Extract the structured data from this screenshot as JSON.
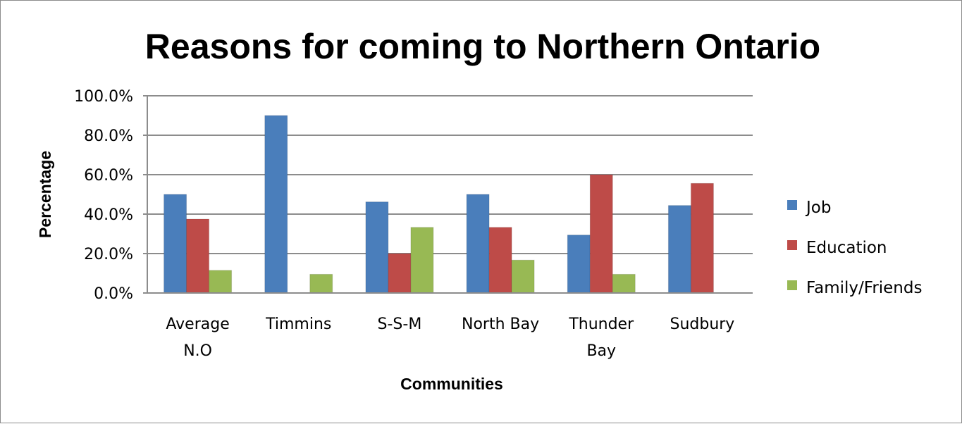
{
  "chart_data": {
    "type": "bar",
    "title": "Reasons for coming to Northern Ontario",
    "xlabel": "Communities",
    "ylabel": "Percentage",
    "categories": [
      [
        "Average",
        "N.O"
      ],
      [
        "Timmins"
      ],
      [
        "S-S-M"
      ],
      [
        "North Bay"
      ],
      [
        "Thunder",
        "Bay"
      ],
      [
        "Sudbury"
      ]
    ],
    "series": [
      {
        "name": "Job",
        "color": "#4a7ebb",
        "values": [
          50.0,
          90.0,
          46.2,
          50.0,
          29.4,
          44.4
        ]
      },
      {
        "name": "Education",
        "color": "#be4b48",
        "values": [
          37.5,
          0,
          20.0,
          33.3,
          60.0,
          55.6
        ]
      },
      {
        "name": "Family/Friends",
        "color": "#98b954",
        "values": [
          11.5,
          9.5,
          33.3,
          16.7,
          9.5,
          0
        ]
      }
    ],
    "ylim": [
      0,
      100
    ],
    "yticks": [
      "0.0%",
      "20.0%",
      "40.0%",
      "60.0%",
      "80.0%",
      "100.0%"
    ],
    "grid": true,
    "legend": "right"
  }
}
